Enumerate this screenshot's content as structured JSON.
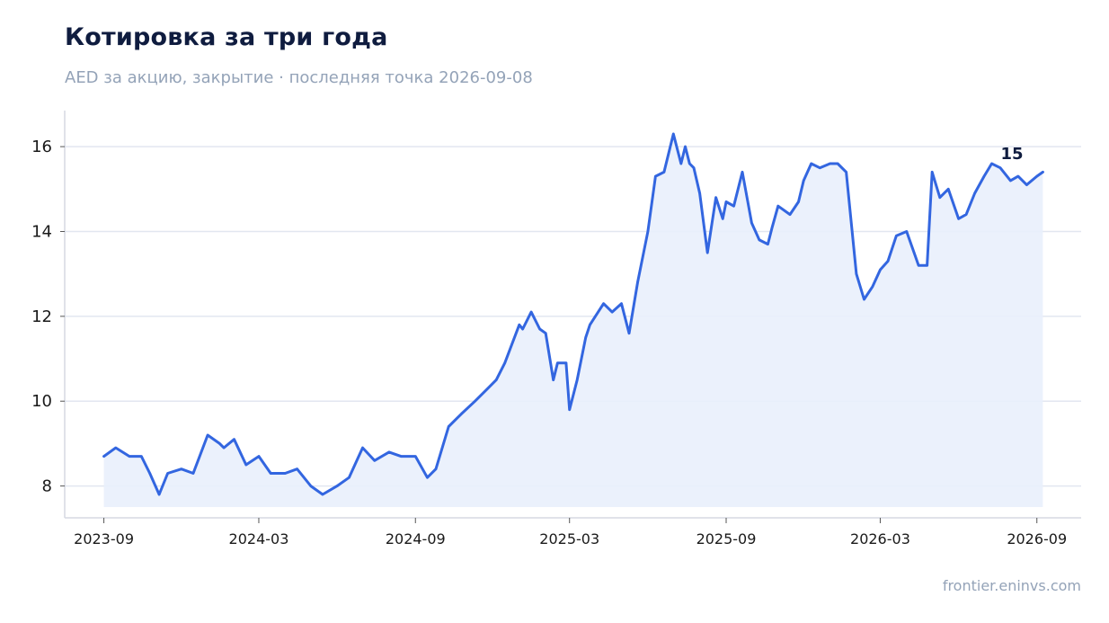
{
  "header": {
    "title": "Котировка за три года",
    "subtitle": "AED за акцию, закрытие · последняя точка 2026-09-08"
  },
  "footer": {
    "credit": "frontier.eninvs.com"
  },
  "colors": {
    "line": "#3366e0",
    "fill": "#e9effc",
    "grid": "#e2e6f0",
    "axis": "#d5d9e2"
  },
  "chart_data": {
    "type": "area",
    "title": "Котировка за три года",
    "subtitle": "AED за акцию, закрытие · последняя точка 2026-09-08",
    "xlabel": "",
    "ylabel": "",
    "x_ticks": [
      "2023-09",
      "2024-03",
      "2024-09",
      "2025-03",
      "2025-09",
      "2026-03",
      "2026-09"
    ],
    "y_ticks": [
      8,
      10,
      12,
      14,
      16
    ],
    "xlim": [
      "2023-07-17",
      "2026-10-23"
    ],
    "ylim": [
      7.25,
      16.85
    ],
    "grid": "horizontal",
    "end_label": "15",
    "series": [
      {
        "x": [
          "2023-09-01",
          "2023-09-15",
          "2023-10-01",
          "2023-10-15",
          "2023-10-25",
          "2023-11-05",
          "2023-11-15",
          "2023-12-01",
          "2023-12-15",
          "2024-01-01",
          "2024-01-15",
          "2024-01-20",
          "2024-02-01",
          "2024-02-15",
          "2024-03-01",
          "2024-03-15",
          "2024-04-01",
          "2024-04-15",
          "2024-05-01",
          "2024-05-15",
          "2024-06-01",
          "2024-06-15",
          "2024-07-01",
          "2024-07-15",
          "2024-08-01",
          "2024-08-15",
          "2024-09-01",
          "2024-09-15",
          "2024-09-25",
          "2024-10-10",
          "2024-10-25",
          "2024-11-10",
          "2024-11-25",
          "2024-12-05",
          "2024-12-15",
          "2025-01-01",
          "2025-01-05",
          "2025-01-15",
          "2025-01-25",
          "2025-02-01",
          "2025-02-10",
          "2025-02-15",
          "2025-02-25",
          "2025-03-01",
          "2025-03-10",
          "2025-03-20",
          "2025-03-25",
          "2025-04-10",
          "2025-04-20",
          "2025-05-01",
          "2025-05-10",
          "2025-05-20",
          "2025-06-01",
          "2025-06-10",
          "2025-06-20",
          "2025-07-01",
          "2025-07-10",
          "2025-07-15",
          "2025-07-20",
          "2025-07-25",
          "2025-08-01",
          "2025-08-10",
          "2025-08-20",
          "2025-08-28",
          "2025-09-01",
          "2025-09-10",
          "2025-09-20",
          "2025-10-01",
          "2025-10-10",
          "2025-10-20",
          "2025-10-25",
          "2025-11-01",
          "2025-11-15",
          "2025-11-25",
          "2025-12-01",
          "2025-12-10",
          "2025-12-20",
          "2026-01-01",
          "2026-01-10",
          "2026-01-20",
          "2026-02-01",
          "2026-02-10",
          "2026-02-20",
          "2026-03-01",
          "2026-03-10",
          "2026-03-20",
          "2026-04-01",
          "2026-04-15",
          "2026-04-25",
          "2026-05-01",
          "2026-05-10",
          "2026-05-20",
          "2026-06-01",
          "2026-06-10",
          "2026-06-20",
          "2026-07-01",
          "2026-07-10",
          "2026-07-20",
          "2026-08-01",
          "2026-08-10",
          "2026-08-20",
          "2026-09-01",
          "2026-09-08"
        ],
        "values": [
          8.7,
          8.9,
          8.7,
          8.7,
          8.3,
          7.8,
          8.3,
          8.4,
          8.3,
          9.2,
          9.0,
          8.9,
          9.1,
          8.5,
          8.7,
          8.3,
          8.3,
          8.4,
          8.0,
          7.8,
          8.0,
          8.2,
          8.9,
          8.6,
          8.8,
          8.7,
          8.7,
          8.2,
          8.4,
          9.4,
          9.7,
          10.0,
          10.3,
          10.5,
          10.9,
          11.8,
          11.7,
          12.1,
          11.7,
          11.6,
          10.5,
          10.9,
          10.9,
          9.8,
          10.5,
          11.5,
          11.8,
          12.3,
          12.1,
          12.3,
          11.6,
          12.8,
          14.0,
          15.3,
          15.4,
          16.3,
          15.6,
          16.0,
          15.6,
          15.5,
          14.9,
          13.5,
          14.8,
          14.3,
          14.7,
          14.6,
          15.4,
          14.2,
          13.8,
          13.7,
          14.1,
          14.6,
          14.4,
          14.7,
          15.2,
          15.6,
          15.5,
          15.6,
          15.6,
          15.4,
          13.0,
          12.4,
          12.7,
          13.1,
          13.3,
          13.9,
          14.0,
          13.2,
          13.2,
          15.4,
          14.8,
          15.0,
          14.3,
          14.4,
          14.9,
          15.3,
          15.6,
          15.5,
          15.2,
          15.3,
          15.1,
          15.3,
          15.4
        ]
      }
    ]
  }
}
